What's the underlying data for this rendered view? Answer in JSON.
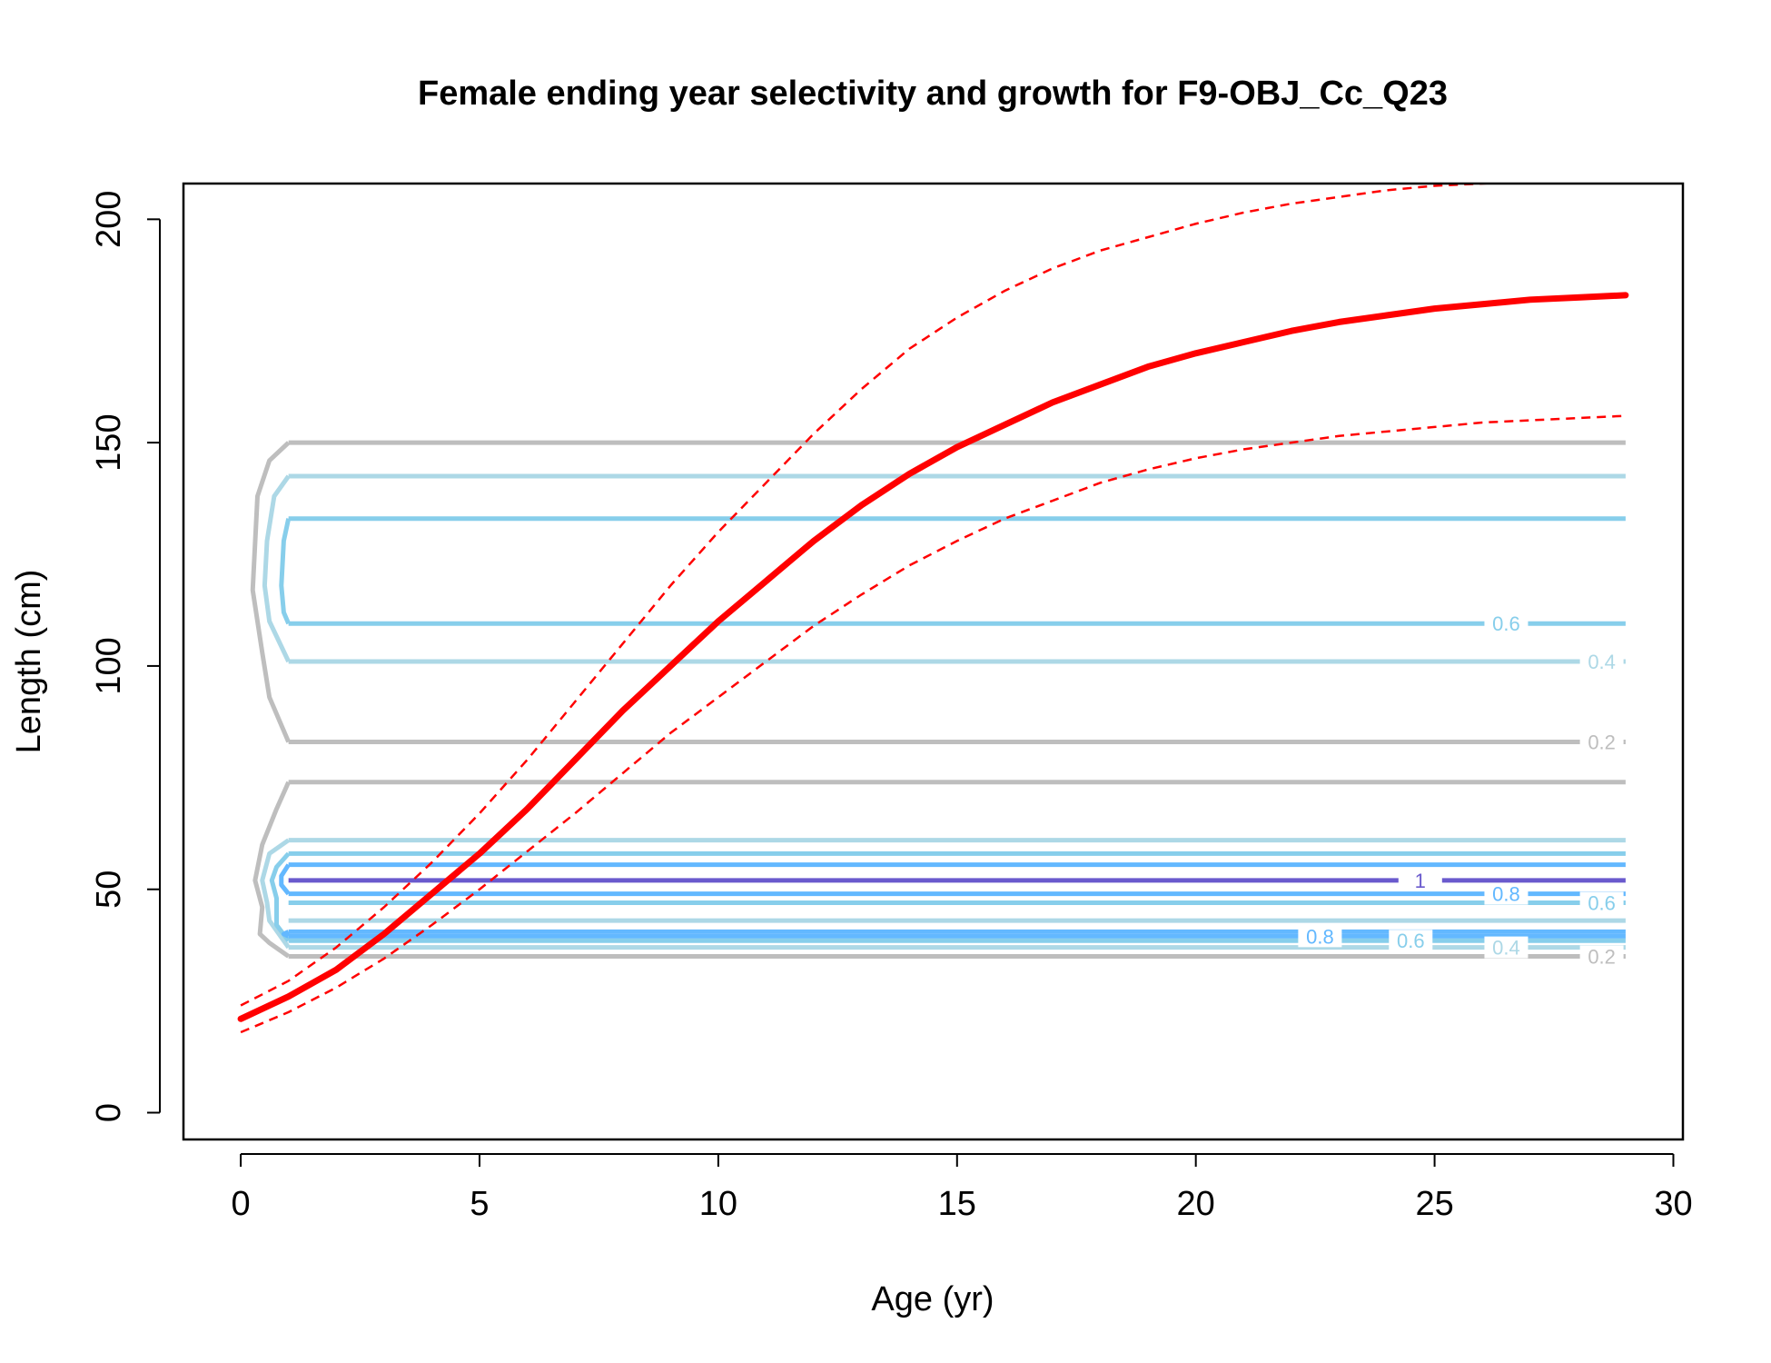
{
  "chart_data": {
    "type": "line",
    "title": "Female ending year selectivity and growth for F9-OBJ_Cc_Q23",
    "xlabel": "Age (yr)",
    "ylabel": "Length (cm)",
    "xlim": [
      -1.2,
      30.2
    ],
    "ylim": [
      -6,
      208
    ],
    "x_ticks": [
      0,
      5,
      10,
      15,
      20,
      25,
      30
    ],
    "y_ticks": [
      0,
      50,
      100,
      150,
      200
    ],
    "grid": false,
    "legend": "none",
    "growth": {
      "color": "#ff0000",
      "ages": [
        0,
        1,
        2,
        3,
        4,
        5,
        6,
        7,
        8,
        9,
        10,
        11,
        12,
        13,
        14,
        15,
        16,
        17,
        18,
        19,
        20,
        21,
        22,
        23,
        24,
        25,
        26,
        27,
        28,
        29
      ],
      "mean": [
        21,
        26,
        32,
        40,
        49,
        58,
        68,
        79,
        90,
        100,
        110,
        119,
        128,
        136,
        143,
        149,
        154,
        159,
        163,
        167,
        170,
        172.5,
        175,
        177,
        178.5,
        180,
        181,
        182,
        182.5,
        183
      ],
      "upper": [
        24,
        29.5,
        37,
        46,
        56,
        67,
        79,
        92,
        105,
        118,
        130,
        141,
        152,
        162,
        171,
        178,
        184,
        189,
        193,
        196,
        199,
        201.5,
        203.5,
        205,
        206.5,
        207.5,
        208,
        208.5,
        209,
        209.5
      ],
      "lower": [
        18,
        22.5,
        28,
        34.5,
        42,
        50,
        58.5,
        67,
        76,
        85,
        93,
        101,
        109,
        116,
        122.5,
        128,
        133,
        137,
        141,
        144,
        146.5,
        148.5,
        150,
        151.5,
        152.5,
        153.5,
        154.5,
        155,
        155.5,
        156
      ]
    },
    "contour_lines": [
      {
        "level": 0.2,
        "color": "#bebebe",
        "y": 150,
        "x_start": 1
      },
      {
        "level": 0.4,
        "color": "#add8e6",
        "y": 142.5,
        "x_start": 1
      },
      {
        "level": 0.6,
        "color": "#87ceeb",
        "y": 133,
        "x_start": 1
      },
      {
        "level": 0.6,
        "color": "#87ceeb",
        "y": 109.5,
        "x_start": 1
      },
      {
        "level": 0.4,
        "color": "#add8e6",
        "y": 101,
        "x_start": 1
      },
      {
        "level": 0.2,
        "color": "#bebebe",
        "y": 83,
        "x_start": 1
      },
      {
        "level": 0.2,
        "color": "#bebebe",
        "y": 74,
        "x_start": 1
      },
      {
        "level": 0.4,
        "color": "#add8e6",
        "y": 61,
        "x_start": 1
      },
      {
        "level": 0.6,
        "color": "#87ceeb",
        "y": 58,
        "x_start": 1
      },
      {
        "level": 0.8,
        "color": "#63b8ff",
        "y": 55.5,
        "x_start": 1
      },
      {
        "level": 1,
        "color": "#6a5acd",
        "y": 52,
        "x_start": 1
      },
      {
        "level": 0.8,
        "color": "#63b8ff",
        "y": 49,
        "x_start": 1
      },
      {
        "level": 0.6,
        "color": "#87ceeb",
        "y": 47,
        "x_start": 1
      },
      {
        "level": 0.4,
        "color": "#add8e6",
        "y": 43,
        "x_start": 1
      },
      {
        "level": 0.8,
        "color": "#63b8ff",
        "y": 40.5,
        "x_start": 1
      },
      {
        "level": 0.8,
        "color": "#63b8ff",
        "y": 39.5,
        "x_start": 1
      },
      {
        "level": 0.6,
        "color": "#87ceeb",
        "y": 38.5,
        "x_start": 1
      },
      {
        "level": 0.4,
        "color": "#add8e6",
        "y": 37,
        "x_start": 1
      },
      {
        "level": 0.2,
        "color": "#bebebe",
        "y": 35,
        "x_start": 1
      }
    ],
    "contour_boundaries": [
      {
        "color": "#bebebe",
        "points": [
          [
            1,
            150
          ],
          [
            0.6,
            146
          ],
          [
            0.35,
            138
          ],
          [
            0.25,
            117
          ],
          [
            0.45,
            103
          ],
          [
            0.6,
            93
          ],
          [
            1,
            83
          ]
        ]
      },
      {
        "color": "#add8e6",
        "points": [
          [
            1,
            142.5
          ],
          [
            0.7,
            138
          ],
          [
            0.55,
            128
          ],
          [
            0.5,
            118
          ],
          [
            0.6,
            110
          ],
          [
            1,
            101
          ]
        ]
      },
      {
        "color": "#87ceeb",
        "points": [
          [
            1,
            133
          ],
          [
            0.9,
            128
          ],
          [
            0.85,
            118
          ],
          [
            0.9,
            112
          ],
          [
            1,
            109.5
          ]
        ]
      },
      {
        "color": "#bebebe",
        "points": [
          [
            1,
            74
          ],
          [
            0.75,
            68
          ],
          [
            0.45,
            60
          ],
          [
            0.3,
            52
          ],
          [
            0.45,
            46
          ],
          [
            0.4,
            40
          ],
          [
            0.6,
            38
          ],
          [
            1,
            35
          ]
        ]
      },
      {
        "color": "#add8e6",
        "points": [
          [
            1,
            61
          ],
          [
            0.6,
            58
          ],
          [
            0.45,
            52
          ],
          [
            0.55,
            47
          ],
          [
            0.6,
            43
          ],
          [
            1,
            37
          ]
        ]
      },
      {
        "color": "#87ceeb",
        "points": [
          [
            1,
            58
          ],
          [
            0.75,
            55
          ],
          [
            0.65,
            52
          ],
          [
            0.75,
            48
          ],
          [
            0.75,
            42
          ],
          [
            1,
            38.5
          ]
        ]
      },
      {
        "color": "#63b8ff",
        "points": [
          [
            1,
            55.5
          ],
          [
            0.85,
            53
          ],
          [
            0.85,
            51
          ],
          [
            1,
            49
          ]
        ]
      },
      {
        "color": "#63b8ff",
        "points": [
          [
            1,
            40.5
          ],
          [
            0.9,
            40
          ],
          [
            1,
            39.5
          ]
        ]
      }
    ],
    "contour_labels": [
      {
        "text": "0.6",
        "x": 26.5,
        "y": 109.5,
        "color": "#87ceeb"
      },
      {
        "text": "0.4",
        "x": 28.5,
        "y": 101,
        "color": "#add8e6"
      },
      {
        "text": "0.2",
        "x": 28.5,
        "y": 83,
        "color": "#bebebe"
      },
      {
        "text": "1",
        "x": 24.7,
        "y": 52,
        "color": "#6a5acd"
      },
      {
        "text": "0.8",
        "x": 26.5,
        "y": 49,
        "color": "#63b8ff"
      },
      {
        "text": "0.6",
        "x": 28.5,
        "y": 47,
        "color": "#87ceeb"
      },
      {
        "text": "0.8",
        "x": 22.6,
        "y": 39.5,
        "color": "#63b8ff"
      },
      {
        "text": "0.6",
        "x": 24.5,
        "y": 38.5,
        "color": "#87ceeb"
      },
      {
        "text": "0.4",
        "x": 26.5,
        "y": 37,
        "color": "#add8e6"
      },
      {
        "text": "0.2",
        "x": 28.5,
        "y": 35,
        "color": "#bebebe"
      }
    ],
    "x_max_lines": 29
  }
}
